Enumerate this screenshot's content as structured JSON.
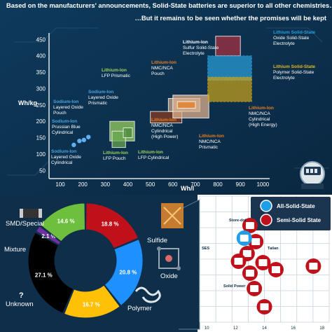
{
  "header": {
    "line1": "Based on the manufacturers' announcements, Solid-State batteries are superior to all other chemistries…",
    "line2": "…But it remains to be seen whether the promises will be kept"
  },
  "chart_data": [
    {
      "type": "scatter",
      "title": "",
      "xlabel": "Wh/l",
      "ylabel": "Wh/kg",
      "xlim": [
        50,
        1030
      ],
      "ylim": [
        25,
        470
      ],
      "xticks": [
        100,
        200,
        300,
        400,
        500,
        600,
        700,
        800,
        900,
        1000
      ],
      "yticks": [
        50,
        100,
        150,
        200,
        250,
        300,
        350,
        400,
        450
      ],
      "grid": false,
      "points": [
        {
          "x": 160,
          "y": 128
        },
        {
          "x": 185,
          "y": 140
        },
        {
          "x": 205,
          "y": 143
        },
        {
          "x": 225,
          "y": 152
        }
      ],
      "regions": [
        {
          "name": "LFP Prismatic",
          "x": [
            320,
            430
          ],
          "y": [
            140,
            200
          ],
          "color": "#9bd35f"
        },
        {
          "name": "LFP Pouch",
          "x": [
            330,
            390
          ],
          "y": [
            120,
            170
          ],
          "color": "#6aa84f"
        },
        {
          "name": "LFP Cylindrical",
          "x": [
            380,
            420
          ],
          "y": [
            150,
            180
          ],
          "color": "#4a8a3a"
        },
        {
          "name": "NMC/NCA Cylindrical (High Power)",
          "x": [
            500,
            640
          ],
          "y": [
            195,
            230
          ],
          "color": "#8b3a1e"
        },
        {
          "name": "NMC/NCA Prismatic",
          "x": [
            580,
            720
          ],
          "y": [
            230,
            270
          ],
          "color": "#c8a68b"
        },
        {
          "name": "NMC/NCA Cylindrical (High Energy)",
          "x": [
            600,
            760
          ],
          "y": [
            210,
            280
          ],
          "color": "#e3b48f"
        },
        {
          "name": "NMC/NCA Pouch",
          "x": [
            620,
            700
          ],
          "y": [
            240,
            260
          ],
          "color": "#e67e22"
        },
        {
          "name": "Sulfur Solid-State Electrolyte",
          "x": [
            790,
            900
          ],
          "y": [
            400,
            460
          ],
          "color": "#a9303f"
        },
        {
          "name": "Oxide Solid-State Electrolyte",
          "x": [
            755,
            950
          ],
          "y": [
            325,
            400
          ],
          "color": "#2aa0d8"
        },
        {
          "name": "Polymer Solid-State Electrolyte",
          "x": [
            755,
            950
          ],
          "y": [
            260,
            335
          ],
          "color": "#c7a11a"
        }
      ],
      "annotations": [
        {
          "head": "Lithium-Ion",
          "sub": "Sulfur Solid-State\nElectrolyte",
          "headcolor": "#ffffff"
        },
        {
          "head": "Lithium Solid-State",
          "sub": "Oxide Solid-State\nElectrolyte",
          "headcolor": "#2aa0d8"
        },
        {
          "head": "Lithium Solid-State",
          "sub": "Polymer Solid-State\nElectrolyte",
          "headcolor": "#e0b820"
        },
        {
          "head": "Lithium-Ion",
          "sub": "NMC/NCA\nPouch",
          "headcolor": "#e67e22"
        },
        {
          "head": "Lithium-Ion",
          "sub": "LFP Prismatic",
          "headcolor": "#9bd35f"
        },
        {
          "head": "Sodium-Ion",
          "sub": "Layered Oxide\nPrismatic",
          "headcolor": "#4aa3e0"
        },
        {
          "head": "Sodium-Ion",
          "sub": "Layered Oxide\nPouch",
          "headcolor": "#4aa3e0"
        },
        {
          "head": "Sodium-Ion",
          "sub": "Prussian Blue\nCylindrical",
          "headcolor": "#4aa3e0"
        },
        {
          "head": "Sodium-Ion",
          "sub": "Layered Oxide\nCylindrical",
          "headcolor": "#4aa3e0"
        },
        {
          "head": "Lithium-Ion",
          "sub": "LFP Pouch",
          "headcolor": "#9bd35f"
        },
        {
          "head": "Lithium-Ion",
          "sub": "LFP Cylindrical",
          "headcolor": "#9bd35f"
        },
        {
          "head": "Lithium-Ion",
          "sub": "NMC/NCA\nCylindrical\n(High Power)",
          "headcolor": "#e67e22"
        },
        {
          "head": "Lithium-Ion",
          "sub": "NMC/NCA\nPrismatic",
          "headcolor": "#e67e22"
        },
        {
          "head": "Lithium-Ion",
          "sub": "NMC/NCA\nCylindrical\n(High Energy)",
          "headcolor": "#e67e22"
        }
      ]
    },
    {
      "type": "pie",
      "title": "",
      "slices": [
        {
          "label": "Sulfide",
          "value": 18.8,
          "text": "18.8 %",
          "color": "#c0111b"
        },
        {
          "label": "Oxide",
          "value": 20.8,
          "text": "20.8 %",
          "color": "#1e90ff"
        },
        {
          "label": "Polymer",
          "value": 16.7,
          "text": "16.7 %",
          "color": "#ffc107"
        },
        {
          "label": "Unknown",
          "value": 27.1,
          "text": "27.1 %",
          "color": "#000000"
        },
        {
          "label": "Mixture",
          "value": 2.1,
          "text": "2.1 %",
          "color": "#7030a0"
        },
        {
          "label": "SMD/Special",
          "value": 14.6,
          "text": "14.6 %",
          "color": "#6fbf3f"
        }
      ],
      "unknown_mark": "?"
    },
    {
      "type": "scatter",
      "title": "",
      "xticks": [
        10,
        12,
        14,
        16,
        18
      ],
      "legend": [
        {
          "label": "All-Solid-State",
          "color": "#1ea0e8"
        },
        {
          "label": "Semi-Solid State",
          "color": "#c0111b"
        }
      ],
      "legend_position": "top-right",
      "labels": [
        "Store-dot",
        "SES",
        "Tailan",
        "Solid Power"
      ],
      "points": [
        {
          "x": 13.0,
          "kind": "Semi-Solid State"
        },
        {
          "x": 13.4,
          "kind": "Semi-Solid State"
        },
        {
          "x": 12.8,
          "kind": "Semi-Solid State"
        },
        {
          "x": 12.2,
          "kind": "Semi-Solid State"
        },
        {
          "x": 13.0,
          "kind": "Semi-Solid State"
        },
        {
          "x": 13.9,
          "kind": "Semi-Solid State"
        },
        {
          "x": 13.3,
          "kind": "Semi-Solid State"
        },
        {
          "x": 14.8,
          "kind": "Semi-Solid State"
        },
        {
          "x": 17.4,
          "kind": "Semi-Solid State"
        },
        {
          "x": 14.0,
          "kind": "Semi-Solid State"
        },
        {
          "x": 12.6,
          "kind": "All-Solid-State"
        }
      ]
    }
  ]
}
